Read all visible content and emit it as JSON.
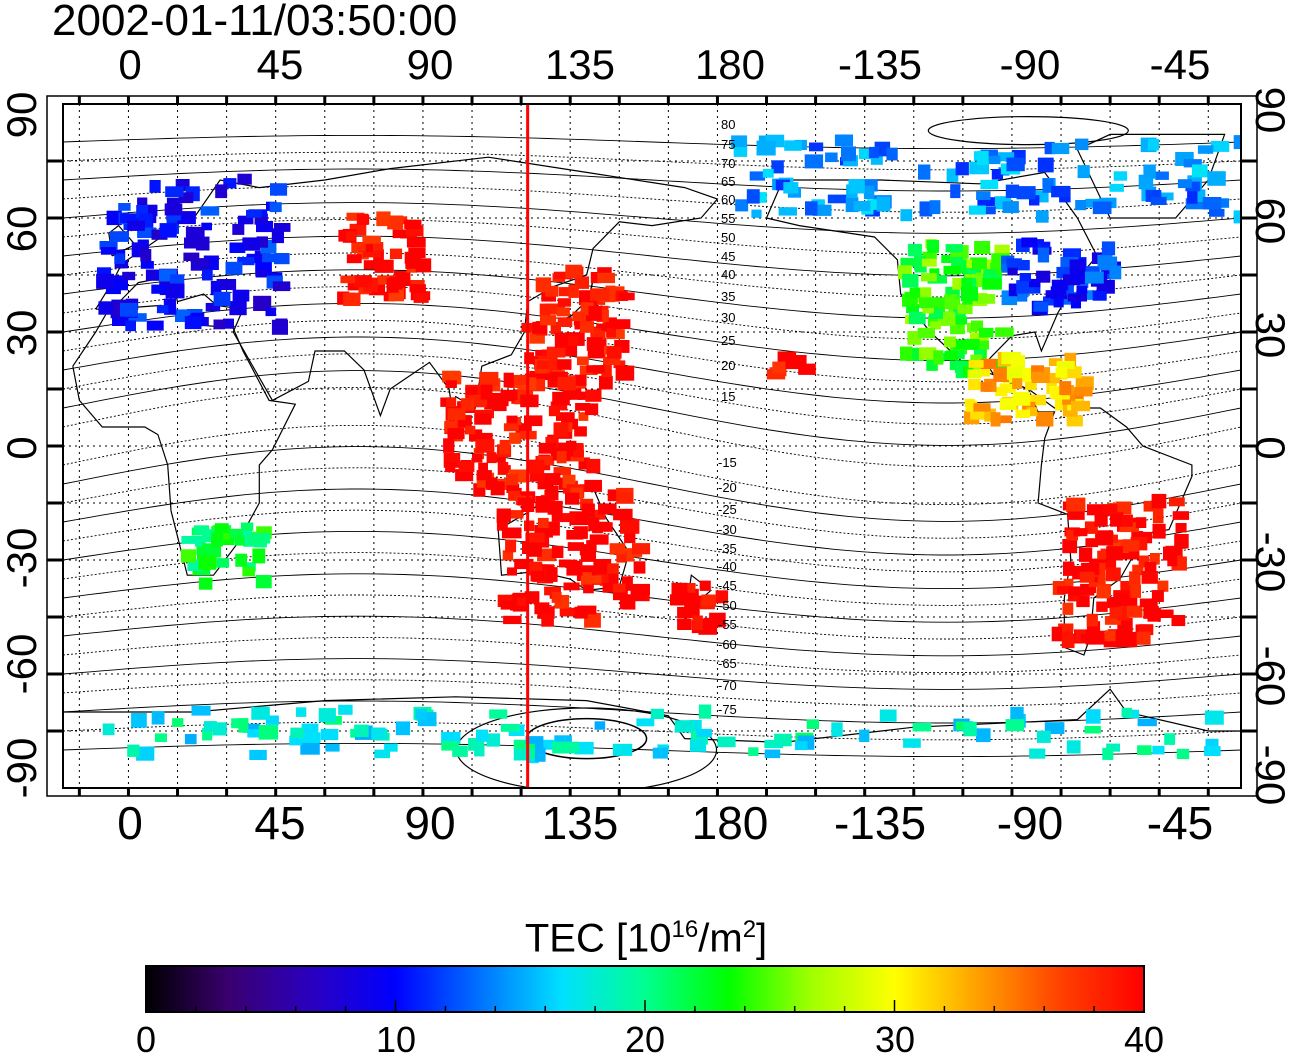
{
  "title": "2002-01-11/03:50:00",
  "map": {
    "type": "global TEC map",
    "projection": "equirectangular",
    "lon_ticks_top": [
      "0",
      "45",
      "90",
      "135",
      "180",
      "-135",
      "-90",
      "-45"
    ],
    "lon_ticks_bottom": [
      "0",
      "45",
      "90",
      "135",
      "180",
      "-135",
      "-90",
      "-45"
    ],
    "lat_ticks_left": [
      "90",
      "60",
      "30",
      "0",
      "-30",
      "-60",
      "-90"
    ],
    "lat_ticks_right": [
      "90",
      "60",
      "30",
      "0",
      "-30",
      "-60",
      "-90"
    ],
    "grid": "dotted, 15 degree spacing",
    "sun_meridian_lon": 122,
    "contour_labels_north": [
      "80",
      "75",
      "70",
      "65",
      "60",
      "55",
      "50",
      "45",
      "40",
      "35",
      "30",
      "25",
      "20",
      "15"
    ],
    "contour_labels_south": [
      "-15",
      "-20",
      "-25",
      "-30",
      "-35",
      "-40",
      "-45",
      "-50",
      "-55",
      "-60",
      "-65",
      "-70",
      "-75"
    ]
  },
  "colorbar": {
    "label_prefix": "TEC  [10",
    "label_exp1": "16",
    "label_mid": "/m",
    "label_exp2": "2",
    "label_suffix": "]",
    "ticks": [
      "0",
      "10",
      "20",
      "30",
      "40"
    ],
    "range": [
      0,
      40
    ],
    "colors": [
      "#000000",
      "#3a0070",
      "#2a00c0",
      "#0000ff",
      "#0070ff",
      "#00e0ff",
      "#00ff90",
      "#00ff00",
      "#a0ff00",
      "#ffff00",
      "#ffa000",
      "#ff4000",
      "#ff0000"
    ]
  },
  "chart_data": {
    "type": "heatmap",
    "title": "2002-01-11/03:50:00",
    "xlabel": "",
    "ylabel": "",
    "xlim": [
      -20,
      340
    ],
    "ylim": [
      -90,
      90
    ],
    "colorbar_label": "TEC [10^16/m^2]",
    "vmin": 0,
    "vmax": 40,
    "regions": [
      {
        "name": "Europe",
        "lon": [
          -10,
          45
        ],
        "lat": [
          33,
          72
        ],
        "tec": 10
      },
      {
        "name": "Central Asia",
        "lon": [
          63,
          88
        ],
        "lat": [
          40,
          62
        ],
        "tec": 40
      },
      {
        "name": "Japan / East China",
        "lon": [
          120,
          150
        ],
        "lat": [
          18,
          48
        ],
        "tec": 40
      },
      {
        "name": "Maritime Southeast Asia",
        "lon": [
          95,
          140
        ],
        "lat": [
          -10,
          20
        ],
        "tec": 40
      },
      {
        "name": "Australia",
        "lon": [
          112,
          155
        ],
        "lat": [
          -45,
          -10
        ],
        "tec": 40
      },
      {
        "name": "New Zealand",
        "lon": [
          165,
          180
        ],
        "lat": [
          -48,
          -34
        ],
        "tec": 40
      },
      {
        "name": "Hawaii",
        "lon": [
          195,
          205
        ],
        "lat": [
          18,
          25
        ],
        "tec": 40
      },
      {
        "name": "Western North America",
        "lon": [
          235,
          265
        ],
        "lat": [
          20,
          55
        ],
        "tec": 24
      },
      {
        "name": "Eastern North America",
        "lon": [
          265,
          300
        ],
        "lat": [
          38,
          55
        ],
        "tec": 11
      },
      {
        "name": "Central America",
        "lon": [
          255,
          290
        ],
        "lat": [
          8,
          25
        ],
        "tec": 32
      },
      {
        "name": "South America",
        "lon": [
          282,
          320
        ],
        "lat": [
          -50,
          -12
        ],
        "tec": 40
      },
      {
        "name": "Southern Africa",
        "lon": [
          15,
          40
        ],
        "lat": [
          -35,
          -20
        ],
        "tec": 22
      },
      {
        "name": "Antarctic coast",
        "lon": [
          -10,
          330
        ],
        "lat": [
          -80,
          -68
        ],
        "tec": 18
      },
      {
        "name": "Arctic",
        "lon": [
          180,
          340
        ],
        "lat": [
          62,
          82
        ],
        "tec": 14
      }
    ]
  }
}
